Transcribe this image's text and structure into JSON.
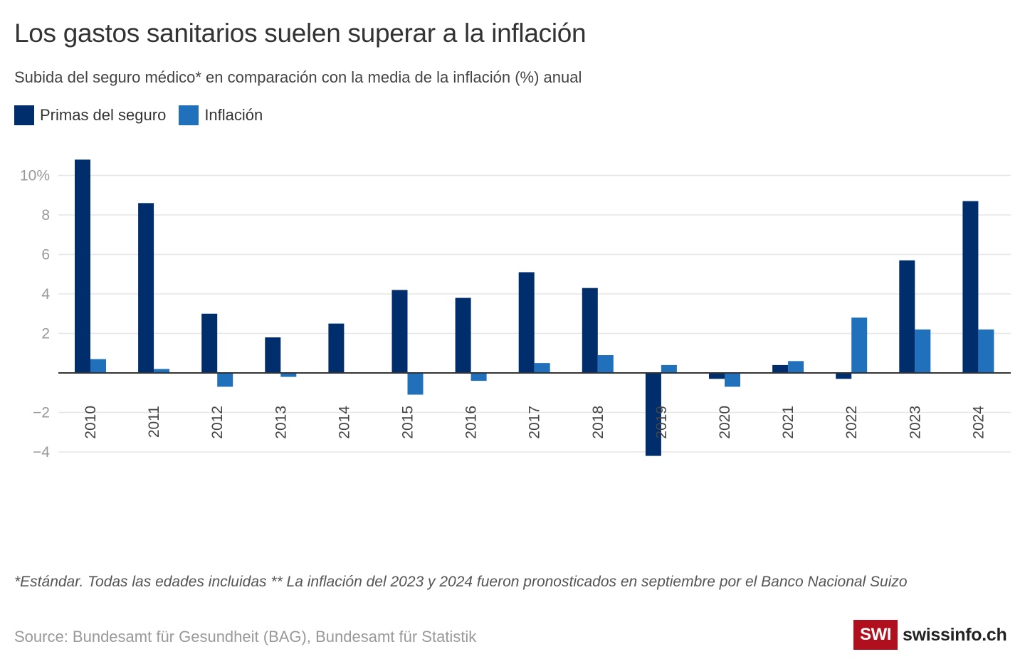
{
  "header": {
    "title": "Los gastos sanitarios suelen superar a la inflación",
    "subtitle": "Subida del seguro médico* en comparación con la media de la inflación (%) anual"
  },
  "legend": [
    {
      "label": "Primas del seguro",
      "color": "#002d6b"
    },
    {
      "label": "Inflación",
      "color": "#2170bb"
    }
  ],
  "footnote": "*Estándar. Todas las edades incluidas  ** La inflación del 2023 y 2024 fueron pronosticados en septiembre por el Banco Nacional Suizo",
  "source": "Source: Bundesamt für Gesundheit (BAG), Bundesamt für Statistik",
  "logo": {
    "box": "SWI",
    "text": "swissinfo.ch",
    "color": "#b0101e"
  },
  "chart_data": {
    "type": "bar",
    "title": "Los gastos sanitarios suelen superar a la inflación",
    "subtitle": "Subida del seguro médico* en comparación con la media de la inflación (%) anual",
    "xlabel": "",
    "ylabel": "",
    "categories": [
      "2010",
      "2011",
      "2012",
      "2013",
      "2014",
      "2015",
      "2016",
      "2017",
      "2018",
      "2019",
      "2020",
      "2021",
      "2022",
      "2023",
      "2024"
    ],
    "series": [
      {
        "name": "Primas del seguro",
        "color": "#002d6b",
        "values": [
          10.8,
          8.6,
          3.0,
          1.8,
          2.5,
          4.2,
          3.8,
          5.1,
          4.3,
          -4.2,
          -0.3,
          0.4,
          -0.3,
          5.7,
          8.7
        ]
      },
      {
        "name": "Inflación",
        "color": "#2170bb",
        "values": [
          0.7,
          0.2,
          -0.7,
          -0.2,
          0.0,
          -1.1,
          -0.4,
          0.5,
          0.9,
          0.4,
          -0.7,
          0.6,
          2.8,
          2.2,
          2.2
        ]
      }
    ],
    "yticks": [
      -4,
      -2,
      2,
      4,
      6,
      8,
      10
    ],
    "ytick_labels": [
      "−4",
      "−2",
      "2",
      "4",
      "6",
      "8",
      "10%"
    ],
    "ylim": [
      -5.2,
      11
    ],
    "grid": true,
    "legend_position": "top-left",
    "x_label_rotation": "vertical"
  }
}
